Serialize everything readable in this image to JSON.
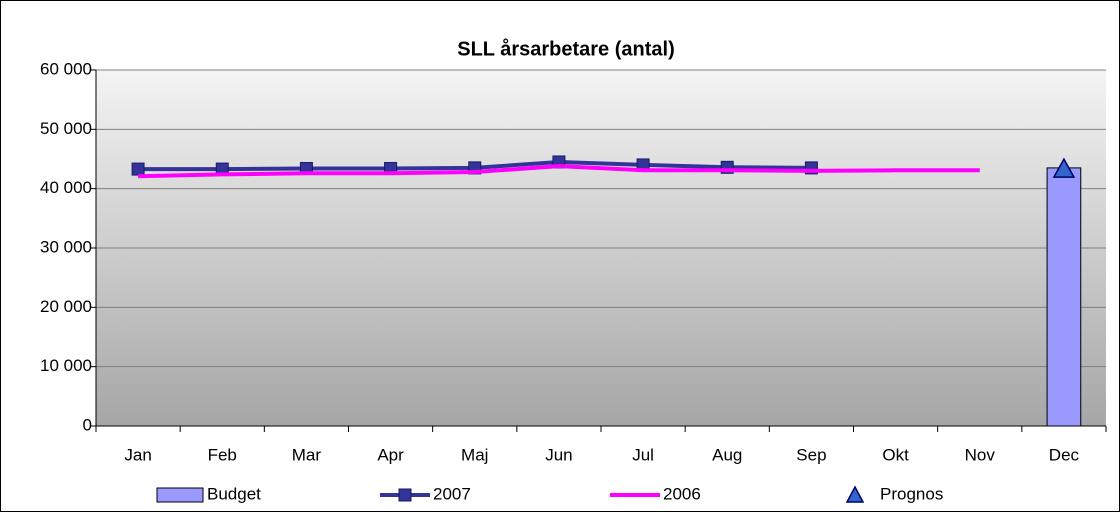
{
  "chart_data": {
    "type": "combo",
    "title": "SLL årsarbetare (antal)",
    "categories": [
      "Jan",
      "Feb",
      "Mar",
      "Apr",
      "Maj",
      "Jun",
      "Jul",
      "Aug",
      "Sep",
      "Okt",
      "Nov",
      "Dec"
    ],
    "series": [
      {
        "name": "Budget",
        "type": "bar",
        "color": "#9999ff",
        "values": [
          null,
          null,
          null,
          null,
          null,
          null,
          null,
          null,
          null,
          null,
          null,
          43500
        ]
      },
      {
        "name": "2007",
        "type": "line",
        "marker": "square",
        "color": "#333399",
        "values": [
          43300,
          43300,
          43400,
          43400,
          43500,
          44500,
          44000,
          43600,
          43500,
          null,
          null,
          null
        ]
      },
      {
        "name": "2006",
        "type": "line",
        "color": "#ff00ff",
        "values": [
          42100,
          42400,
          42600,
          42600,
          42800,
          43800,
          43100,
          43100,
          43000,
          43100,
          43100,
          null
        ]
      },
      {
        "name": "Prognos",
        "type": "scatter",
        "marker": "triangle",
        "color": "#3366cc",
        "values": [
          null,
          null,
          null,
          null,
          null,
          null,
          null,
          null,
          null,
          null,
          null,
          43300
        ]
      }
    ],
    "ylim": [
      0,
      60000
    ],
    "yticks": [
      {
        "value": 0,
        "label": "0"
      },
      {
        "value": 10000,
        "label": "10 000"
      },
      {
        "value": 20000,
        "label": "20 000"
      },
      {
        "value": 30000,
        "label": "30 000"
      },
      {
        "value": 40000,
        "label": "40 000"
      },
      {
        "value": 50000,
        "label": "50 000"
      },
      {
        "value": 60000,
        "label": "60 000"
      }
    ],
    "grid": true,
    "legend": "bottom"
  }
}
